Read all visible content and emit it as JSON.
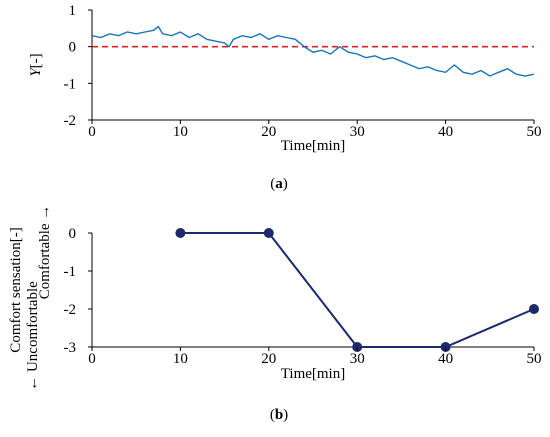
{
  "chart_data": [
    {
      "type": "line",
      "ylabel_italic": "Y",
      "ylabel_rest": "[-]",
      "xlabel": "Time[min]",
      "xlim": [
        0,
        50
      ],
      "ylim": [
        -2,
        1
      ],
      "xticks": [
        "0",
        "10",
        "20",
        "30",
        "40",
        "50"
      ],
      "yticks": [
        "1",
        "0",
        "-1",
        "-2"
      ],
      "reference_line": {
        "y": 0,
        "color": "#e02020",
        "style": "dashed"
      },
      "caption_letter": "a",
      "series": [
        {
          "color": "#1a73b8",
          "x": [
            0,
            1,
            2,
            3,
            4,
            5,
            6,
            7,
            7.5,
            8,
            9,
            10,
            11,
            12,
            13,
            14,
            15,
            15.5,
            16,
            17,
            18,
            19,
            20,
            21,
            22,
            23,
            24,
            25,
            26,
            27,
            28,
            29,
            30,
            31,
            32,
            33,
            34,
            35,
            36,
            37,
            38,
            39,
            40,
            41,
            42,
            43,
            44,
            45,
            46,
            47,
            48,
            49,
            50
          ],
          "y": [
            0.3,
            0.25,
            0.35,
            0.3,
            0.4,
            0.35,
            0.4,
            0.45,
            0.55,
            0.35,
            0.3,
            0.4,
            0.25,
            0.35,
            0.2,
            0.15,
            0.1,
            0.0,
            0.2,
            0.3,
            0.25,
            0.35,
            0.2,
            0.3,
            0.25,
            0.2,
            0.0,
            -0.15,
            -0.1,
            -0.2,
            0.0,
            -0.15,
            -0.2,
            -0.3,
            -0.25,
            -0.35,
            -0.3,
            -0.4,
            -0.5,
            -0.6,
            -0.55,
            -0.65,
            -0.7,
            -0.5,
            -0.7,
            -0.75,
            -0.65,
            -0.8,
            -0.7,
            -0.6,
            -0.75,
            -0.8,
            -0.75
          ]
        }
      ]
    },
    {
      "type": "line",
      "ylabel_lines": [
        "Comfort sensation[-]",
        "← Uncomfortable",
        "Comfortable →"
      ],
      "xlabel": "Time[min]",
      "xlim": [
        0,
        50
      ],
      "ylim": [
        -3,
        0
      ],
      "xticks": [
        "0",
        "10",
        "20",
        "30",
        "40",
        "50"
      ],
      "yticks": [
        "0",
        "-1",
        "-2",
        "-3"
      ],
      "caption_letter": "b",
      "series": [
        {
          "color": "#1a2a6b",
          "x": [
            10,
            20,
            30,
            40,
            50
          ],
          "y": [
            0,
            0,
            -3,
            -3,
            -2
          ]
        }
      ]
    }
  ]
}
